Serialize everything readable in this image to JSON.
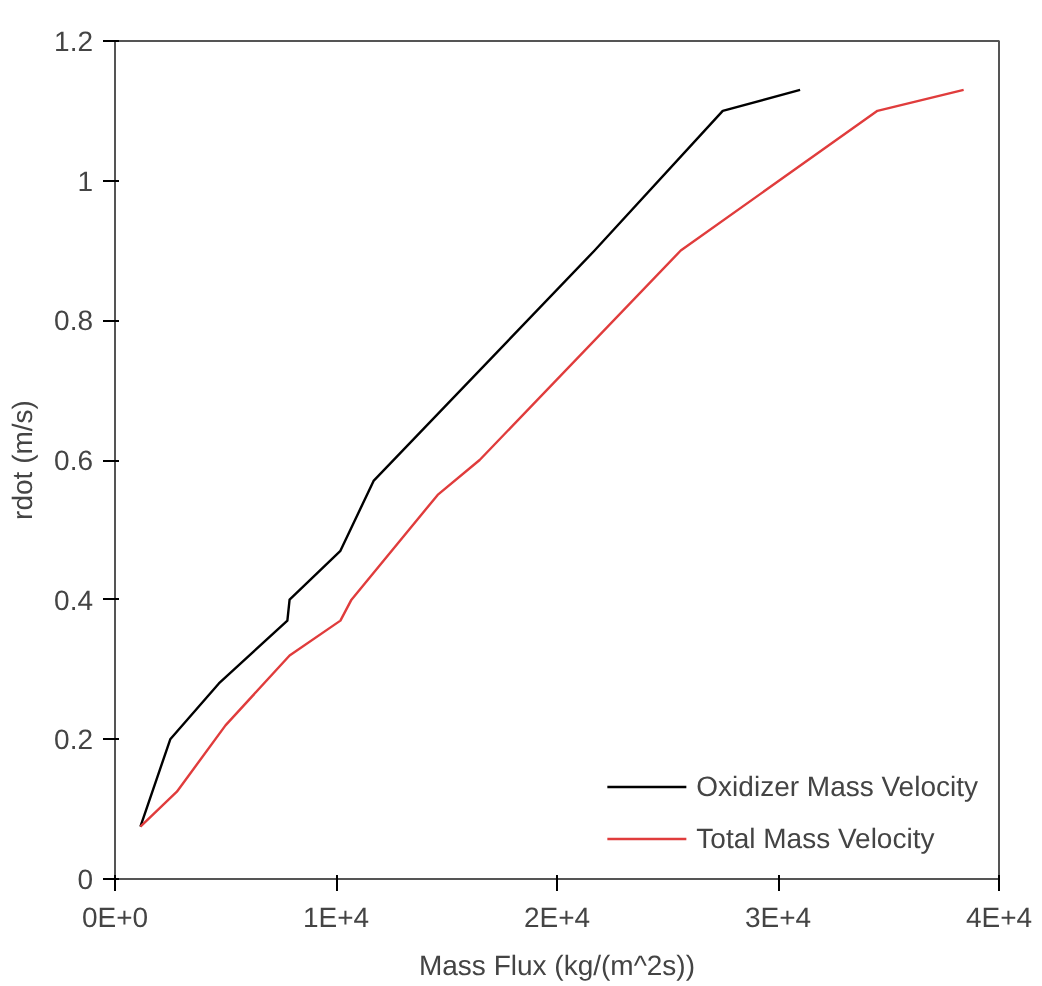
{
  "chart_data": {
    "type": "line",
    "xlabel": "Mass Flux (kg/(m^2s))",
    "ylabel": "rdot (m/s)",
    "xlim": [
      0,
      40000
    ],
    "ylim": [
      0,
      1.2
    ],
    "xticks": [
      {
        "value": 0,
        "label": "0E+0"
      },
      {
        "value": 10000,
        "label": "1E+4"
      },
      {
        "value": 20000,
        "label": "2E+4"
      },
      {
        "value": 30000,
        "label": "3E+4"
      },
      {
        "value": 40000,
        "label": "4E+4"
      }
    ],
    "yticks": [
      0,
      0.2,
      0.4,
      0.6,
      0.8,
      1,
      1.2
    ],
    "grid": false,
    "legend": "bottom right",
    "series": [
      {
        "name": "Oxidizer Mass Velocity",
        "color": "#000000",
        "x": [
          1150,
          2500,
          4700,
          7800,
          7900,
          10200,
          11700,
          21700,
          27500,
          31000
        ],
        "values": [
          0.075,
          0.2,
          0.28,
          0.37,
          0.4,
          0.47,
          0.57,
          0.9,
          1.1,
          1.13
        ]
      },
      {
        "name": "Total Mass Velocity",
        "color": "#e03c3c",
        "x": [
          1150,
          2800,
          5000,
          7900,
          10200,
          10700,
          14600,
          16500,
          25600,
          34500,
          38400
        ],
        "values": [
          0.075,
          0.125,
          0.22,
          0.32,
          0.37,
          0.4,
          0.55,
          0.6,
          0.9,
          1.1,
          1.13
        ]
      }
    ]
  }
}
